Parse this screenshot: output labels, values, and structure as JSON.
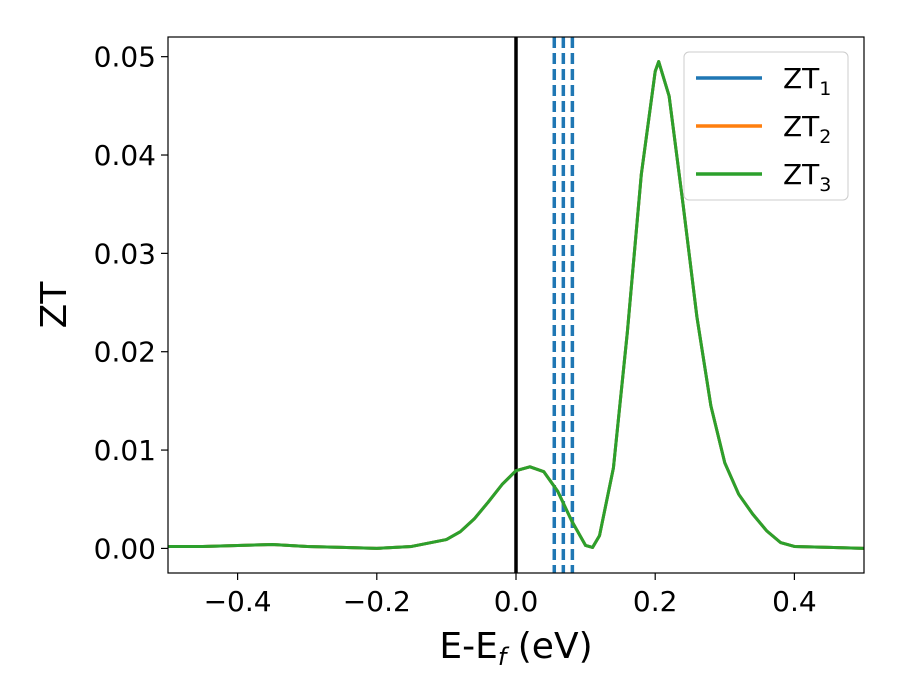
{
  "chart_data": {
    "type": "line",
    "xlabel": {
      "main": "E-E",
      "subscript": "f",
      "suffix": " (eV)"
    },
    "ylabel": "ZT",
    "xlim": [
      -0.5,
      0.5
    ],
    "ylim": [
      -0.0025,
      0.052
    ],
    "xticks": [
      -0.4,
      -0.2,
      0.0,
      0.2,
      0.4
    ],
    "xtick_labels": [
      "−0.4",
      "−0.2",
      "0.0",
      "0.2",
      "0.4"
    ],
    "yticks": [
      0.0,
      0.01,
      0.02,
      0.03,
      0.04,
      0.05
    ],
    "ytick_labels": [
      "0.00",
      "0.01",
      "0.02",
      "0.03",
      "0.04",
      "0.05"
    ],
    "legend_position": "top-right",
    "series": [
      {
        "name": "ZT",
        "name_sub": "1",
        "color": "#1f77b4",
        "x": [
          -0.5,
          -0.45,
          -0.4,
          -0.35,
          -0.3,
          -0.25,
          -0.2,
          -0.15,
          -0.1,
          -0.08,
          -0.06,
          -0.04,
          -0.02,
          0.0,
          0.02,
          0.04,
          0.06,
          0.08,
          0.1,
          0.11,
          0.12,
          0.14,
          0.16,
          0.18,
          0.2,
          0.205,
          0.22,
          0.24,
          0.26,
          0.28,
          0.3,
          0.32,
          0.34,
          0.36,
          0.38,
          0.4,
          0.45,
          0.5
        ],
        "y": [
          0.0002,
          0.0002,
          0.0003,
          0.0004,
          0.0002,
          0.0001,
          0.0,
          0.0002,
          0.0009,
          0.0017,
          0.003,
          0.0047,
          0.0065,
          0.0079,
          0.0083,
          0.0078,
          0.0058,
          0.0028,
          0.0003,
          0.0001,
          0.0013,
          0.0082,
          0.022,
          0.038,
          0.0485,
          0.0495,
          0.046,
          0.035,
          0.0235,
          0.0145,
          0.0087,
          0.0055,
          0.0035,
          0.0018,
          0.0006,
          0.0002,
          0.0001,
          0.0
        ]
      },
      {
        "name": "ZT",
        "name_sub": "2",
        "color": "#ff7f0e",
        "x": [
          -0.5,
          -0.45,
          -0.4,
          -0.35,
          -0.3,
          -0.25,
          -0.2,
          -0.15,
          -0.1,
          -0.08,
          -0.06,
          -0.04,
          -0.02,
          0.0,
          0.02,
          0.04,
          0.06,
          0.08,
          0.1,
          0.11,
          0.12,
          0.14,
          0.16,
          0.18,
          0.2,
          0.205,
          0.22,
          0.24,
          0.26,
          0.28,
          0.3,
          0.32,
          0.34,
          0.36,
          0.38,
          0.4,
          0.45,
          0.5
        ],
        "y": [
          0.0002,
          0.0002,
          0.0003,
          0.0004,
          0.0002,
          0.0001,
          0.0,
          0.0002,
          0.0009,
          0.0017,
          0.003,
          0.0047,
          0.0065,
          0.0079,
          0.0083,
          0.0078,
          0.0058,
          0.0028,
          0.0003,
          0.0001,
          0.0013,
          0.0082,
          0.022,
          0.038,
          0.0485,
          0.0495,
          0.046,
          0.035,
          0.0235,
          0.0145,
          0.0087,
          0.0055,
          0.0035,
          0.0018,
          0.0006,
          0.0002,
          0.0001,
          0.0
        ]
      },
      {
        "name": "ZT",
        "name_sub": "3",
        "color": "#2ca02c",
        "x": [
          -0.5,
          -0.45,
          -0.4,
          -0.35,
          -0.3,
          -0.25,
          -0.2,
          -0.15,
          -0.1,
          -0.08,
          -0.06,
          -0.04,
          -0.02,
          0.0,
          0.02,
          0.04,
          0.06,
          0.08,
          0.1,
          0.11,
          0.12,
          0.14,
          0.16,
          0.18,
          0.2,
          0.205,
          0.22,
          0.24,
          0.26,
          0.28,
          0.3,
          0.32,
          0.34,
          0.36,
          0.38,
          0.4,
          0.45,
          0.5
        ],
        "y": [
          0.0002,
          0.0002,
          0.0003,
          0.0004,
          0.0002,
          0.0001,
          0.0,
          0.0002,
          0.0009,
          0.0017,
          0.003,
          0.0047,
          0.0065,
          0.0079,
          0.0083,
          0.0078,
          0.0058,
          0.0028,
          0.0003,
          0.0001,
          0.0013,
          0.0082,
          0.022,
          0.038,
          0.0485,
          0.0495,
          0.046,
          0.035,
          0.0235,
          0.0145,
          0.0087,
          0.0055,
          0.0035,
          0.0018,
          0.0006,
          0.0002,
          0.0001,
          0.0
        ]
      }
    ],
    "reference_lines": [
      {
        "x": 0.0,
        "color": "#000000",
        "style": "solid"
      },
      {
        "x": 0.055,
        "color": "#1f77b4",
        "style": "dashed"
      },
      {
        "x": 0.068,
        "color": "#1f77b4",
        "style": "dashed"
      },
      {
        "x": 0.081,
        "color": "#1f77b4",
        "style": "dashed"
      }
    ]
  }
}
